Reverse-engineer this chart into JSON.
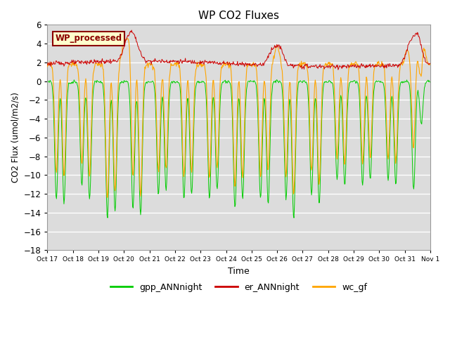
{
  "title": "WP CO2 Fluxes",
  "xlabel": "Time",
  "ylabel_display": "CO2 Flux (umol/m2/s)",
  "ylim": [
    -18,
    6
  ],
  "yticks": [
    -18,
    -16,
    -14,
    -12,
    -10,
    -8,
    -6,
    -4,
    -2,
    0,
    2,
    4,
    6
  ],
  "n_days": 15,
  "hpd": 48,
  "color_gpp": "#00CC00",
  "color_er": "#CC0000",
  "color_wc": "#FFA500",
  "bg_color": "#DCDCDC",
  "legend_box_text": "WP_processed",
  "legend_box_text_color": "#8B0000",
  "legend_box_face": "#FFFFCC",
  "legend_box_edge": "#8B0000",
  "xtick_labels": [
    "Oct 17",
    "Oct 18",
    "Oct 19",
    "Oct 20",
    "Oct 21",
    "Oct 22",
    "Oct 23",
    "Oct 24",
    "Oct 25",
    "Oct 26",
    "Oct 27",
    "Oct 28",
    "Oct 29",
    "Oct 30",
    "Oct 31",
    "Nov 1"
  ],
  "gpp_dip_centers": [
    0.35,
    0.65,
    1.35,
    1.65,
    2.35,
    2.65,
    3.35,
    3.65,
    4.35,
    4.65,
    5.35,
    5.65,
    6.35,
    6.65,
    7.35,
    7.65,
    8.35,
    8.65,
    9.35,
    9.65,
    10.35,
    10.65,
    11.35,
    11.65,
    12.35,
    12.65,
    13.35,
    13.65,
    14.35,
    14.65
  ],
  "gpp_dip_depths": [
    -12.5,
    -13.0,
    -11.0,
    -12.5,
    -14.5,
    -13.8,
    -13.5,
    -14.2,
    -12.0,
    -11.5,
    -12.5,
    -12.0,
    -12.5,
    -11.5,
    -13.5,
    -12.5,
    -12.5,
    -13.0,
    -12.5,
    -14.5,
    -12.0,
    -13.0,
    -10.5,
    -11.0,
    -11.0,
    -10.5,
    -10.5,
    -11.0,
    -11.5,
    -4.5
  ],
  "wc_dip_centers": [
    0.35,
    0.65,
    1.35,
    1.65,
    2.35,
    2.65,
    3.35,
    3.65,
    4.35,
    4.65,
    5.35,
    5.65,
    6.35,
    6.65,
    7.35,
    7.65,
    8.35,
    8.65,
    9.35,
    9.65,
    10.35,
    10.65,
    11.35,
    11.65,
    12.35,
    12.65,
    13.35,
    13.65,
    14.35,
    14.65
  ],
  "wc_dip_depths": [
    -11.5,
    -12.0,
    -10.5,
    -12.0,
    -14.5,
    -13.5,
    -12.5,
    -14.0,
    -11.5,
    -11.0,
    -12.0,
    -11.5,
    -12.0,
    -11.0,
    -13.0,
    -12.0,
    -12.0,
    -12.5,
    -12.0,
    -14.0,
    -11.5,
    -12.5,
    -10.0,
    -10.5,
    -10.5,
    -10.0,
    -10.0,
    -10.5,
    -11.0,
    -4.0
  ],
  "er_spike_centers": [
    3.1,
    3.3,
    3.5,
    8.8,
    9.1,
    14.2,
    14.5
  ],
  "er_spike_heights": [
    1.5,
    2.0,
    1.2,
    1.5,
    1.8,
    2.0,
    3.0
  ],
  "wc_spike_centers": [
    3.0,
    3.2,
    8.7,
    9.0,
    14.1,
    14.4,
    14.7
  ],
  "wc_spike_heights": [
    2.5,
    3.0,
    1.5,
    2.0,
    1.5,
    2.5,
    3.5
  ]
}
